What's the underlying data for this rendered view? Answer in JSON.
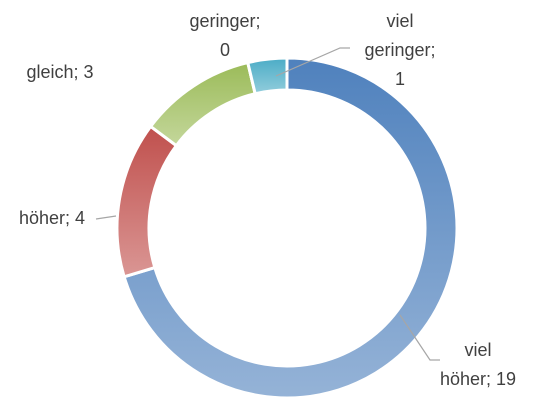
{
  "chart_data": {
    "type": "donut",
    "categories": [
      "viel höher",
      "höher",
      "gleich",
      "geringer",
      "viel geringer"
    ],
    "values": [
      19,
      4,
      3,
      0,
      1
    ],
    "value_labels": [
      [
        "viel",
        "höher; 19"
      ],
      [
        "höher; 4"
      ],
      [
        "gleich; 3"
      ],
      [
        "geringer;",
        "0"
      ],
      [
        "viel",
        "geringer;",
        "1"
      ]
    ],
    "colors": [
      "#4f81bd",
      "#c0504d",
      "#9bbb59",
      "#8064a2",
      "#4bacc6"
    ],
    "colors_light": [
      "#95b3d7",
      "#da9694",
      "#c4d79b",
      "#b1a0c7",
      "#92cddc"
    ]
  }
}
